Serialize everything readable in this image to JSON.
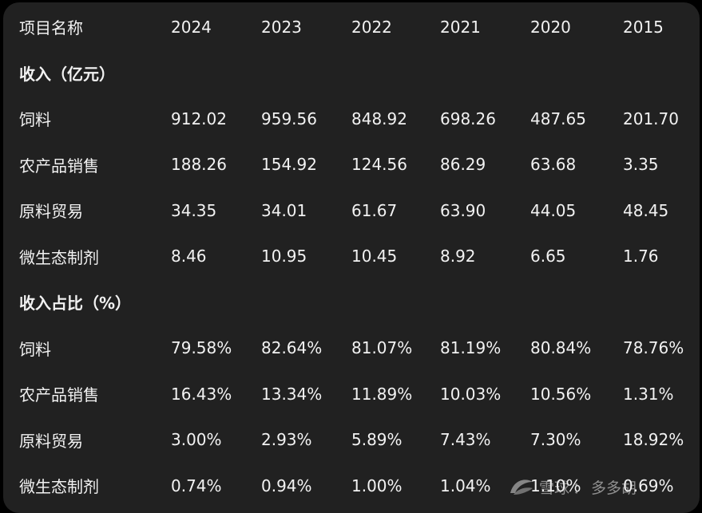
{
  "table": {
    "header": [
      "项目名称",
      "2024",
      "2023",
      "2022",
      "2021",
      "2020",
      "2015"
    ],
    "sections": [
      {
        "title": "收入（亿元）",
        "rows": [
          {
            "label": "饲料",
            "values": [
              "912.02",
              "959.56",
              "848.92",
              "698.26",
              "487.65",
              "201.70"
            ]
          },
          {
            "label": "农产品销售",
            "values": [
              "188.26",
              "154.92",
              "124.56",
              "86.29",
              "63.68",
              "3.35"
            ]
          },
          {
            "label": "原料贸易",
            "values": [
              "34.35",
              "34.01",
              "61.67",
              "63.90",
              "44.05",
              "48.45"
            ]
          },
          {
            "label": "微生态制剂",
            "values": [
              "8.46",
              "10.95",
              "10.45",
              "8.92",
              "6.65",
              "1.76"
            ]
          }
        ]
      },
      {
        "title": "收入占比（%）",
        "rows": [
          {
            "label": "饲料",
            "values": [
              "79.58%",
              "82.64%",
              "81.07%",
              "81.19%",
              "80.84%",
              "78.76%"
            ]
          },
          {
            "label": "农产品销售",
            "values": [
              "16.43%",
              "13.34%",
              "11.89%",
              "10.03%",
              "10.56%",
              "1.31%"
            ]
          },
          {
            "label": "原料贸易",
            "values": [
              "3.00%",
              "2.93%",
              "5.89%",
              "7.43%",
              "7.30%",
              "18.92%"
            ]
          },
          {
            "label": "微生态制剂",
            "values": [
              "0.74%",
              "0.94%",
              "1.00%",
              "1.04%",
              "1.10%",
              "0.69%"
            ]
          }
        ]
      }
    ]
  },
  "watermark": {
    "site": "雪球",
    "separator": "：",
    "author": "多多胡"
  },
  "colors": {
    "panel": "#212121",
    "background": "#000000",
    "text": "#f2f2f2"
  }
}
